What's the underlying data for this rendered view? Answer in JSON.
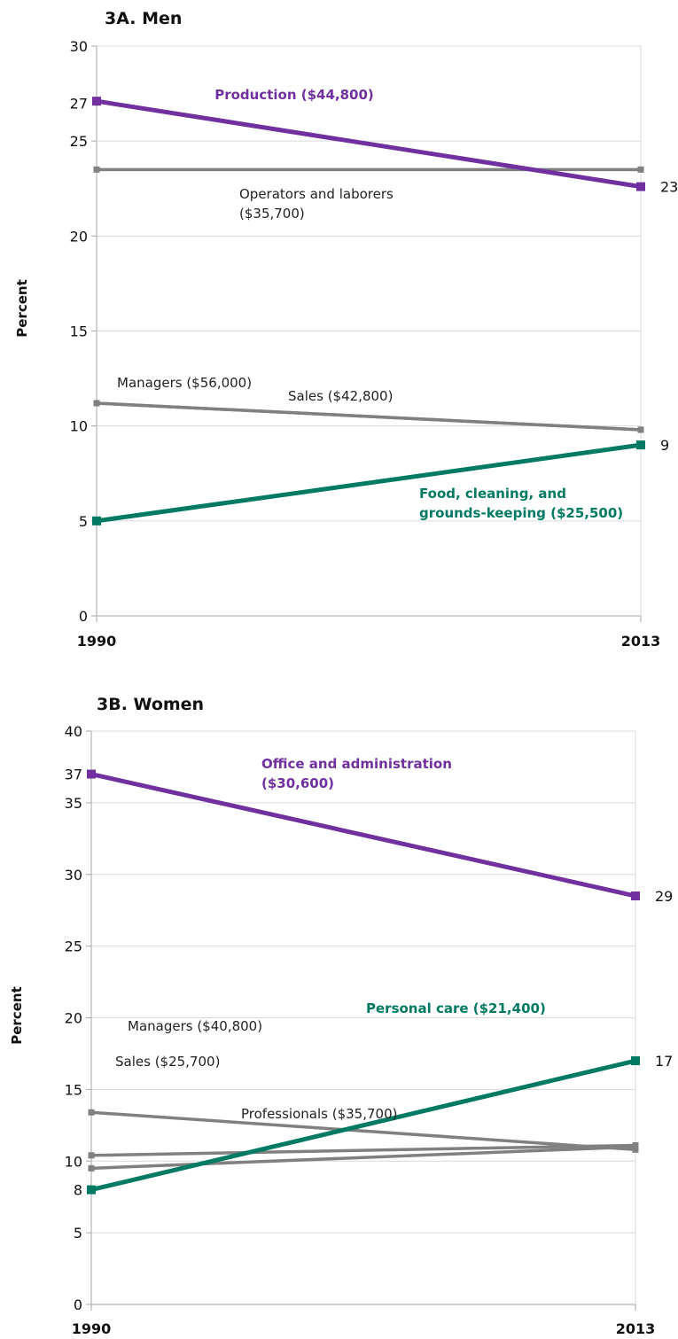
{
  "colors": {
    "purple": "#7030a0",
    "teal": "#007a62",
    "gray": "#808080",
    "grid": "#d9d9d9",
    "axis": "#a6a6a6"
  },
  "chart_data": [
    {
      "type": "line",
      "title": "3A. Men",
      "ylabel": "Percent",
      "x": [
        "1990",
        "2013"
      ],
      "ylim": [
        0,
        30
      ],
      "yticks": [
        "0",
        "5",
        "10",
        "15",
        "20",
        "25",
        "30"
      ],
      "extra_yticks": [
        "27"
      ],
      "grid": true,
      "series": [
        {
          "name": "Production ($44,800)",
          "values": [
            27.1,
            22.6
          ],
          "color": "#7030a0",
          "style": "highlight",
          "end_label": "23"
        },
        {
          "name": "Operators and laborers ($35,700)",
          "values": [
            23.5,
            23.5
          ],
          "color": "#808080",
          "style": "normal"
        },
        {
          "name": "Managers ($56,000)",
          "values": [
            11.2,
            9.8
          ],
          "color": "#808080",
          "style": "normal"
        },
        {
          "name": "Sales ($42,800)",
          "values": [
            11.2,
            9.8
          ],
          "color": "#808080",
          "style": "normal"
        },
        {
          "name": "Food, cleaning, and grounds-keeping ($25,500)",
          "values": [
            5.0,
            9.0
          ],
          "color": "#007a62",
          "style": "highlight",
          "end_label": "9"
        }
      ],
      "annotations": [
        {
          "lines": [
            "Production ($44,800)"
          ],
          "series": 0
        },
        {
          "lines": [
            "Operators and laborers",
            "($35,700)"
          ],
          "series": 1
        },
        {
          "lines": [
            "Managers ($56,000)"
          ],
          "series": 2
        },
        {
          "lines": [
            "Sales ($42,800)"
          ],
          "series": 3
        },
        {
          "lines": [
            "Food, cleaning, and",
            "grounds-keeping ($25,500)"
          ],
          "series": 4
        }
      ]
    },
    {
      "type": "line",
      "title": "3B. Women",
      "ylabel": "Percent",
      "x": [
        "1990",
        "2013"
      ],
      "ylim": [
        0,
        40
      ],
      "yticks": [
        "0",
        "5",
        "10",
        "15",
        "20",
        "25",
        "30",
        "35",
        "40"
      ],
      "extra_yticks": [
        "37",
        "8"
      ],
      "grid": true,
      "series": [
        {
          "name": "Office and administration ($30,600)",
          "values": [
            37.0,
            28.5
          ],
          "color": "#7030a0",
          "style": "highlight",
          "end_label": "29"
        },
        {
          "name": "Managers ($40,800)",
          "values": [
            13.4,
            10.8
          ],
          "color": "#808080",
          "style": "normal"
        },
        {
          "name": "Sales ($25,700)",
          "values": [
            10.4,
            11.1
          ],
          "color": "#808080",
          "style": "normal"
        },
        {
          "name": "Professionals ($35,700)",
          "values": [
            9.5,
            11.0
          ],
          "color": "#808080",
          "style": "normal"
        },
        {
          "name": "Personal care ($21,400)",
          "values": [
            8.0,
            17.0
          ],
          "color": "#007a62",
          "style": "highlight",
          "end_label": "17"
        }
      ],
      "annotations": [
        {
          "lines": [
            "Office and administration",
            "($30,600)"
          ],
          "series": 0
        },
        {
          "lines": [
            "Managers ($40,800)"
          ],
          "series": 1
        },
        {
          "lines": [
            "Sales ($25,700)"
          ],
          "series": 2
        },
        {
          "lines": [
            "Professionals ($35,700)"
          ],
          "series": 3
        },
        {
          "lines": [
            "Personal care ($21,400)"
          ],
          "series": 4
        }
      ]
    }
  ]
}
